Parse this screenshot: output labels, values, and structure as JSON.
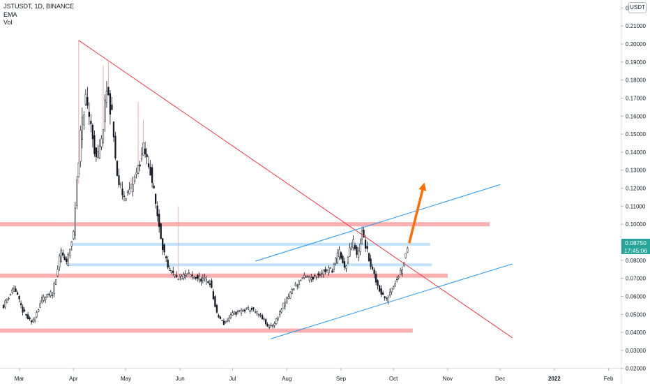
{
  "legend": {
    "symbol": "JSTUSDT, 1D, BINANCE",
    "indicator_1": "EMA",
    "indicator_2": "Vol"
  },
  "quote_currency": "USDT",
  "last_price": {
    "value": "0.08750",
    "countdown": "17:45:06",
    "color": "#26a69a"
  },
  "colors": {
    "up": "#ffffff",
    "down": "#131722",
    "wick": "#131722",
    "volume_spike": "#ef9a9a",
    "trendline": "#f23645",
    "channel": "#2196f3",
    "support_zone": "#f7a1a1",
    "minor_zone": "#bbdefb",
    "arrow": "#ff6d00"
  },
  "chart_data": {
    "type": "candlestick",
    "title": "",
    "xlabel": "",
    "ylabel": "",
    "x_ticks": [
      "Mar",
      "Apr",
      "May",
      "Jun",
      "Jul",
      "Aug",
      "Sep",
      "Oct",
      "Nov",
      "Dec",
      "2022",
      "Feb"
    ],
    "y_ticks": [
      "0.02000",
      "0.03000",
      "0.04000",
      "0.05000",
      "0.06000",
      "0.07000",
      "0.08000",
      "0.09000",
      "0.10000",
      "0.11000",
      "0.12000",
      "0.13000",
      "0.14000",
      "0.15000",
      "0.16000",
      "0.17000",
      "0.18000",
      "0.19000",
      "0.20000",
      "0.21000",
      "0.22000"
    ],
    "ylim": [
      0.0195,
      0.2215
    ],
    "grid": false,
    "price_anchors": [
      [
        "2021-02-20",
        0.055
      ],
      [
        "2021-02-26",
        0.065
      ],
      [
        "2021-03-03",
        0.052
      ],
      [
        "2021-03-08",
        0.045
      ],
      [
        "2021-03-14",
        0.058
      ],
      [
        "2021-03-20",
        0.062
      ],
      [
        "2021-03-25",
        0.085
      ],
      [
        "2021-03-28",
        0.078
      ],
      [
        "2021-04-01",
        0.095
      ],
      [
        "2021-04-03",
        0.125
      ],
      [
        "2021-04-05",
        0.15
      ],
      [
        "2021-04-08",
        0.17
      ],
      [
        "2021-04-11",
        0.155
      ],
      [
        "2021-04-14",
        0.135
      ],
      [
        "2021-04-17",
        0.145
      ],
      [
        "2021-04-20",
        0.175
      ],
      [
        "2021-04-23",
        0.16
      ],
      [
        "2021-04-26",
        0.125
      ],
      [
        "2021-04-30",
        0.115
      ],
      [
        "2021-05-04",
        0.12
      ],
      [
        "2021-05-07",
        0.128
      ],
      [
        "2021-05-11",
        0.142
      ],
      [
        "2021-05-15",
        0.13
      ],
      [
        "2021-05-19",
        0.105
      ],
      [
        "2021-05-22",
        0.088
      ],
      [
        "2021-05-25",
        0.075
      ],
      [
        "2021-05-30",
        0.07
      ],
      [
        "2021-06-05",
        0.072
      ],
      [
        "2021-06-12",
        0.07
      ],
      [
        "2021-06-18",
        0.068
      ],
      [
        "2021-06-22",
        0.05
      ],
      [
        "2021-06-26",
        0.045
      ],
      [
        "2021-07-01",
        0.05
      ],
      [
        "2021-07-06",
        0.052
      ],
      [
        "2021-07-12",
        0.053
      ],
      [
        "2021-07-18",
        0.048
      ],
      [
        "2021-07-21",
        0.043
      ],
      [
        "2021-07-25",
        0.045
      ],
      [
        "2021-07-30",
        0.055
      ],
      [
        "2021-08-05",
        0.065
      ],
      [
        "2021-08-10",
        0.07
      ],
      [
        "2021-08-14",
        0.07
      ],
      [
        "2021-08-18",
        0.072
      ],
      [
        "2021-08-22",
        0.074
      ],
      [
        "2021-08-27",
        0.075
      ],
      [
        "2021-08-31",
        0.085
      ],
      [
        "2021-09-03",
        0.075
      ],
      [
        "2021-09-06",
        0.085
      ],
      [
        "2021-09-08",
        0.09
      ],
      [
        "2021-09-10",
        0.082
      ],
      [
        "2021-09-13",
        0.095
      ],
      [
        "2021-09-15",
        0.088
      ],
      [
        "2021-09-18",
        0.077
      ],
      [
        "2021-09-21",
        0.068
      ],
      [
        "2021-09-24",
        0.062
      ],
      [
        "2021-09-27",
        0.058
      ],
      [
        "2021-09-30",
        0.065
      ],
      [
        "2021-10-03",
        0.07
      ],
      [
        "2021-10-06",
        0.076
      ],
      [
        "2021-10-09",
        0.0875
      ]
    ],
    "horizontal_zones": [
      {
        "price": 0.1,
        "from": "2021-02-18",
        "to": "2021-11-25",
        "kind": "major"
      },
      {
        "price": 0.0715,
        "from": "2021-02-18",
        "to": "2021-11-01",
        "kind": "major"
      },
      {
        "price": 0.041,
        "from": "2021-02-18",
        "to": "2021-10-12",
        "kind": "major"
      },
      {
        "price": 0.0889,
        "from": "2021-03-31",
        "to": "2021-10-22",
        "kind": "minor"
      },
      {
        "price": 0.0775,
        "from": "2021-03-28",
        "to": "2021-10-23",
        "kind": "minor"
      }
    ],
    "trendlines": [
      {
        "from": [
          "2021-04-04",
          0.202
        ],
        "to": [
          "2021-12-08",
          0.037
        ],
        "kind": "resistance"
      },
      {
        "from": [
          "2021-07-14",
          0.0795
        ],
        "to": [
          "2021-12-01",
          0.122
        ],
        "kind": "channel"
      },
      {
        "from": [
          "2021-07-23",
          0.0365
        ],
        "to": [
          "2021-12-08",
          0.078
        ],
        "kind": "channel"
      }
    ],
    "arrow": {
      "from": [
        "2021-10-10",
        0.0895
      ],
      "to": [
        "2021-10-18",
        0.1205
      ]
    }
  }
}
